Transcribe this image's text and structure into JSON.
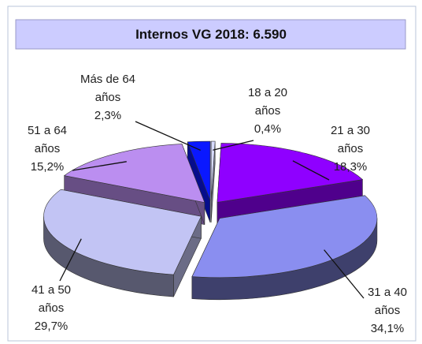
{
  "chart_data": {
    "type": "pie",
    "title": "Internos VG 2018:  6.590",
    "categories": [
      "18 a 20 años",
      "21 a 30 años",
      "31 a 40 años",
      "41 a 50 años",
      "51 a 64 años",
      "Más de 64 años"
    ],
    "values": [
      0.4,
      18.3,
      34.1,
      29.7,
      15.2,
      2.3
    ],
    "value_labels": [
      "0,4%",
      "18,3%",
      "34,1%",
      "29,7%",
      "15,2%",
      "2,3%"
    ],
    "colors": [
      "#d8dcff",
      "#8f00ff",
      "#8a8ef0",
      "#c2c4f4",
      "#bb8ef0",
      "#0a18ff"
    ]
  }
}
